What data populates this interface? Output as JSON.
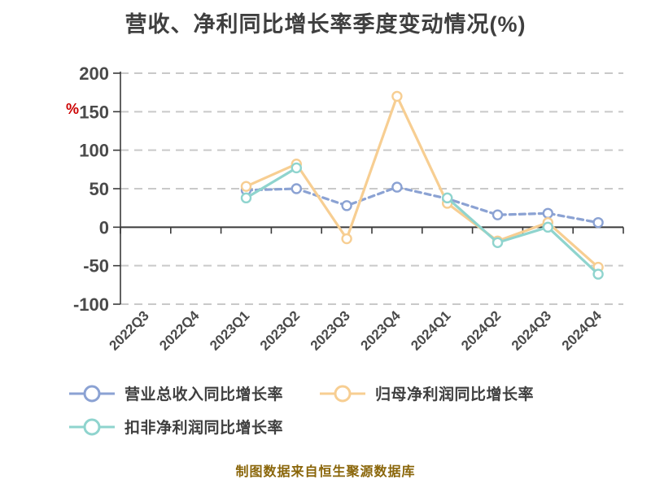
{
  "title": "营收、净利同比增长率季度变动情况(%)",
  "y_axis": {
    "unit_label": "%",
    "unit_color": "#CC0000",
    "ticks": [
      200,
      150,
      100,
      50,
      0,
      -50,
      -100
    ],
    "tick_color": "#4A4A4A"
  },
  "x_axis": {
    "label_color": "#4A4A4A"
  },
  "style": {
    "grid_color": "#C9C9C9",
    "axis_color": "#3A3A3A",
    "title_color": "#3F3F3F"
  },
  "chart_data": {
    "type": "line",
    "title": "营收、净利同比增长率季度变动情况(%)",
    "categories": [
      "2022Q3",
      "2022Q4",
      "2023Q1",
      "2023Q2",
      "2023Q3",
      "2023Q4",
      "2024Q1",
      "2024Q2",
      "2024Q3",
      "2024Q4"
    ],
    "series": [
      {
        "name": "营业总收入同比增长率",
        "color": "#8BA2D3",
        "line_style": "dashed",
        "values": [
          null,
          null,
          48,
          50,
          28,
          52,
          37,
          16,
          18,
          6
        ]
      },
      {
        "name": "归母净利润同比增长率",
        "color": "#F7CE92",
        "line_style": "solid",
        "values": [
          null,
          null,
          53,
          82,
          -15,
          170,
          31,
          -18,
          6,
          -52
        ]
      },
      {
        "name": "扣非净利润同比增长率",
        "color": "#8FD4CE",
        "line_style": "solid",
        "values": [
          null,
          null,
          38,
          77,
          null,
          null,
          38,
          -20,
          0,
          -61
        ]
      }
    ],
    "ylim": [
      -100,
      200
    ],
    "xlabel": "",
    "ylabel": "%",
    "grid": "horizontal-dashed",
    "legend_position": "bottom-left"
  },
  "footer": {
    "text": "制图数据来自恒生聚源数据库",
    "color": "#8A660A"
  }
}
